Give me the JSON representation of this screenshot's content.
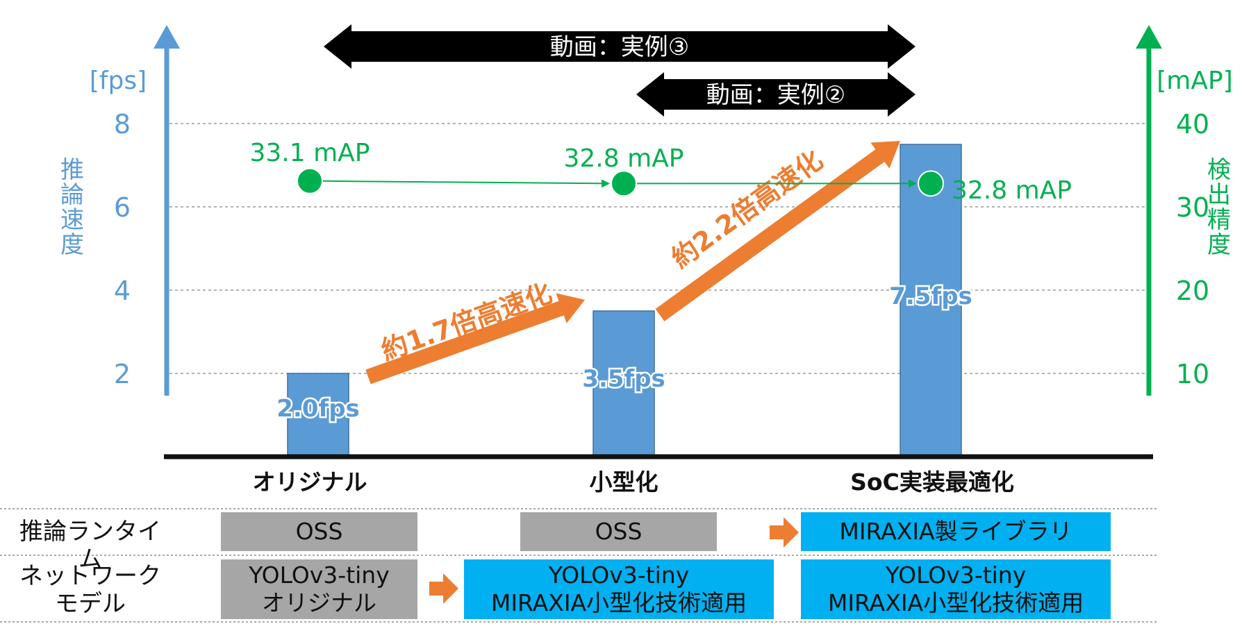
{
  "chart_data": {
    "type": "bar",
    "categories": [
      "オリジナル",
      "小型化",
      "SoC実装最適化"
    ],
    "values": [
      2.0,
      3.5,
      7.5
    ],
    "bar_labels": [
      "2.0fps",
      "3.5fps",
      "7.5fps"
    ],
    "ylim": [
      0,
      8
    ],
    "yticks": [
      "2",
      "4",
      "6",
      "8"
    ],
    "ylabel_unit": "[fps]",
    "ylabel": "推論速度",
    "y2lim": [
      0,
      40
    ],
    "y2ticks": [
      "10",
      "20",
      "30",
      "40"
    ],
    "y2label_unit": "[mAP]",
    "y2label": "検出精度",
    "map_values": [
      33.1,
      32.8,
      32.8
    ],
    "map_labels": [
      "33.1 mAP",
      "32.8 mAP",
      "32.8 mAP"
    ],
    "grid": true,
    "bar_color": "#5b9bd5",
    "line_color": "#00b050",
    "speedup_color": "#ed7d31",
    "speedups": [
      "約1.7倍高速化",
      "約2.2倍高速化"
    ],
    "video_ranges": [
      "動画：実例③",
      "動画：実例②"
    ]
  },
  "table": {
    "rows": [
      {
        "label": [
          "推論ランタイム"
        ],
        "cells": [
          {
            "lines": [
              "OSS"
            ],
            "color": "gray"
          },
          {
            "lines": [
              "OSS"
            ],
            "color": "gray"
          },
          {
            "lines": [
              "MIRAXIA製ライブラリ"
            ],
            "color": "cyan"
          }
        ]
      },
      {
        "label": [
          "ネットワーク",
          "モデル"
        ],
        "cells": [
          {
            "lines": [
              "YOLOv3-tiny",
              "オリジナル"
            ],
            "color": "gray"
          },
          {
            "lines": [
              "YOLOv3-tiny",
              "MIRAXIA小型化技術適用"
            ],
            "color": "cyan"
          },
          {
            "lines": [
              "YOLOv3-tiny",
              "MIRAXIA小型化技術適用"
            ],
            "color": "cyan"
          }
        ]
      }
    ]
  }
}
